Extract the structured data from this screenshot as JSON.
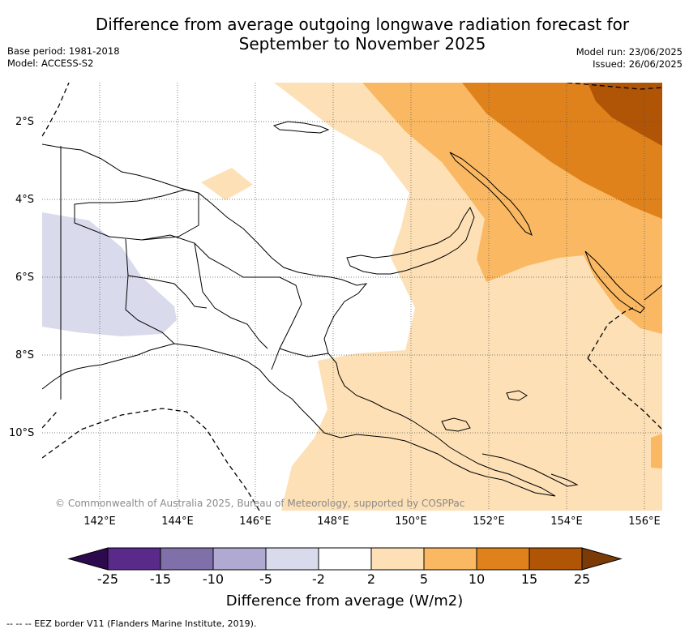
{
  "title_line1": "Difference from average outgoing longwave radiation forecast for",
  "title_line2": "September to November 2025",
  "base_period": "Base period: 1981-2018",
  "model": "Model: ACCESS-S2",
  "model_run": "Model run: 23/06/2025",
  "issued": "Issued: 26/06/2025",
  "copyright": "© Commonwealth of Australia 2025, Bureau of Meteorology, supported by COSPPac",
  "lat_labels": [
    "2°S",
    "4°S",
    "6°S",
    "8°S",
    "10°S"
  ],
  "lon_labels": [
    "142°E",
    "144°E",
    "146°E",
    "148°E",
    "150°E",
    "152°E",
    "154°E",
    "156°E"
  ],
  "colorbar": {
    "title": "Difference from average (W/m2)",
    "labels": [
      "-25",
      "-15",
      "-10",
      "-5",
      "-2",
      "2",
      "5",
      "10",
      "15",
      "25"
    ],
    "colors": [
      "#2d0a4e",
      "#5a2a8a",
      "#8070aa",
      "#b0a9d2",
      "#d9daeb",
      "#ffffff",
      "#fde0b6",
      "#fab862",
      "#e0821c",
      "#b05406",
      "#7a3b06"
    ]
  },
  "footnote": "--  --  -- EEZ border V11 (Flanders Marine Institute, 2019)."
}
